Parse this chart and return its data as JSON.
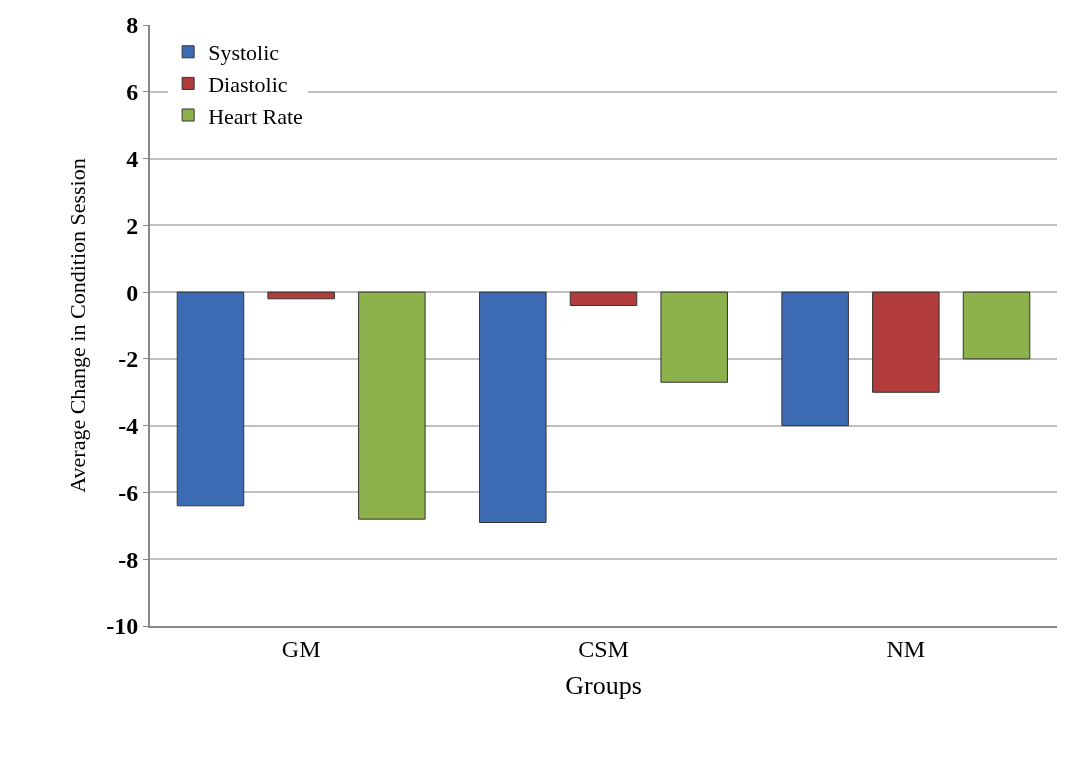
{
  "chart_data": {
    "type": "bar",
    "xlabel": "Groups",
    "ylabel": "Average Change in Condition Session",
    "categories": [
      "GM",
      "CSM",
      "NM"
    ],
    "series": [
      {
        "name": "Systolic",
        "color": "#3d6bb3",
        "values": [
          -6.4,
          -6.9,
          -4.0
        ]
      },
      {
        "name": "Diastolic",
        "color": "#b23b3b",
        "values": [
          -0.2,
          -0.4,
          -3.0
        ]
      },
      {
        "name": "Heart Rate",
        "color": "#8db24c",
        "values": [
          -6.8,
          -2.7,
          -2.0
        ]
      }
    ],
    "ylim": [
      -10,
      8
    ],
    "yticks": [
      -10,
      -8,
      -6,
      -4,
      -2,
      0,
      2,
      4,
      6,
      8
    ],
    "grid": "y",
    "legend": "top left"
  }
}
